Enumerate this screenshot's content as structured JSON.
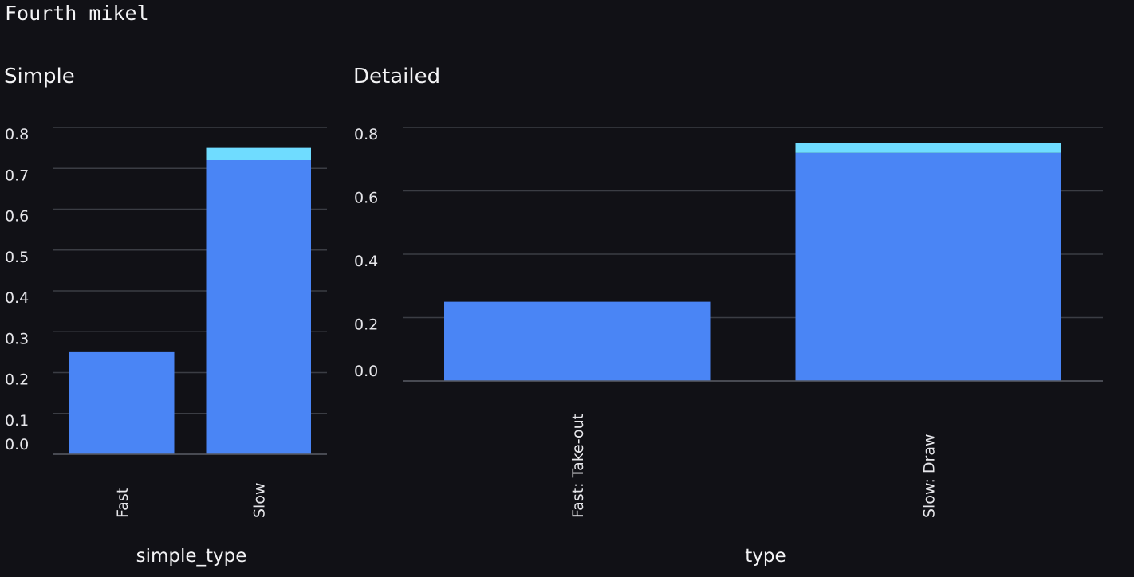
{
  "page": {
    "title": "Fourth mikel"
  },
  "colors": {
    "background": "#111116",
    "grid": "#3b3d44",
    "series_main": "#4a85f5",
    "series_top": "#6fdcff",
    "text": "#f3f3f5"
  },
  "chart_data": [
    {
      "type": "bar",
      "stacked": true,
      "title": "Simple",
      "xlabel": "simple_type",
      "ylabel": "",
      "categories": [
        "Fast",
        "Slow"
      ],
      "series": [
        {
          "values": [
            0.25,
            0.72
          ]
        },
        {
          "values": [
            0.0,
            0.03
          ]
        }
      ],
      "ylim": [
        0,
        0.8
      ],
      "yticks": [
        "0.0",
        "0.1",
        "0.2",
        "0.3",
        "0.4",
        "0.5",
        "0.6",
        "0.7",
        "0.8"
      ],
      "grid": true
    },
    {
      "type": "bar",
      "stacked": true,
      "title": "Detailed",
      "xlabel": "type",
      "ylabel": "",
      "categories": [
        "Fast: Take-out",
        "Slow: Draw"
      ],
      "series": [
        {
          "values": [
            0.25,
            0.72
          ]
        },
        {
          "values": [
            0.0,
            0.03
          ]
        }
      ],
      "ylim": [
        0,
        0.8
      ],
      "yticks": [
        "0.0",
        "0.2",
        "0.4",
        "0.6",
        "0.8"
      ],
      "grid": true
    }
  ]
}
